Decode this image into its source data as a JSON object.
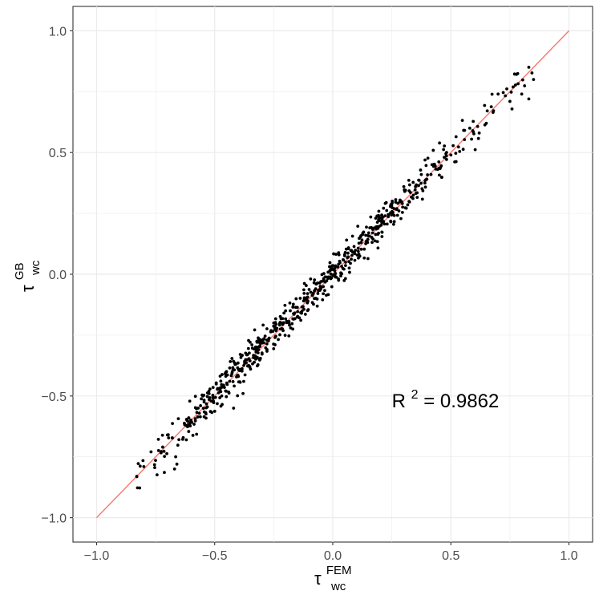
{
  "chart_data": {
    "type": "scatter",
    "xlabel": {
      "base": "τ",
      "sup": "FEM",
      "sub": "wc"
    },
    "ylabel": {
      "base": "τ",
      "sup": "GB",
      "sub": "wc"
    },
    "xlim": [
      -1.1,
      1.1
    ],
    "ylim": [
      -1.1,
      1.1
    ],
    "x_ticks": [
      -1.0,
      -0.5,
      0.0,
      0.5,
      1.0
    ],
    "y_ticks": [
      -1.0,
      -0.5,
      0.0,
      0.5,
      1.0
    ],
    "x_tick_labels": [
      "−1.0",
      "−0.5",
      "0.0",
      "0.5",
      "1.0"
    ],
    "y_tick_labels": [
      "−1.0",
      "−0.5",
      "0.0",
      "0.5",
      "1.0"
    ],
    "grid": true,
    "annotation": {
      "base": "R",
      "sup": "2",
      "rest": " = 0.9862",
      "x": 0.25,
      "y": -0.52
    },
    "fit_line": {
      "x": [
        -1.0,
        1.0
      ],
      "y": [
        -1.0,
        1.0
      ],
      "color": "#F8766D"
    },
    "point_color": "#000000",
    "n_points": 700,
    "point_spread_sd": 0.035,
    "sample_points": [
      [
        -0.83,
        -0.83
      ],
      [
        -0.8,
        -0.79
      ],
      [
        -0.72,
        -0.71
      ],
      [
        -0.7,
        -0.66
      ],
      [
        -0.67,
        -0.8
      ],
      [
        -0.66,
        -0.78
      ],
      [
        -0.62,
        -0.68
      ],
      [
        -0.6,
        -0.6
      ],
      [
        -0.57,
        -0.55
      ],
      [
        -0.55,
        -0.5
      ],
      [
        -0.48,
        -0.47
      ],
      [
        -0.45,
        -0.4
      ],
      [
        -0.42,
        -0.55
      ],
      [
        -0.4,
        -0.42
      ],
      [
        -0.38,
        -0.49
      ],
      [
        -0.3,
        -0.28
      ],
      [
        -0.25,
        -0.2
      ],
      [
        -0.18,
        -0.15
      ],
      [
        -0.12,
        -0.1
      ],
      [
        -0.05,
        -0.03
      ],
      [
        0.0,
        0.02
      ],
      [
        0.05,
        0.08
      ],
      [
        0.12,
        0.13
      ],
      [
        0.2,
        0.22
      ],
      [
        0.28,
        0.26
      ],
      [
        0.35,
        0.36
      ],
      [
        0.42,
        0.45
      ],
      [
        0.5,
        0.49
      ],
      [
        0.58,
        0.6
      ],
      [
        0.62,
        0.58
      ],
      [
        0.65,
        0.62
      ],
      [
        0.7,
        0.74
      ],
      [
        0.75,
        0.71
      ],
      [
        0.8,
        0.74
      ],
      [
        0.83,
        0.85
      ],
      [
        0.85,
        0.8
      ],
      [
        0.83,
        0.72
      ]
    ]
  }
}
